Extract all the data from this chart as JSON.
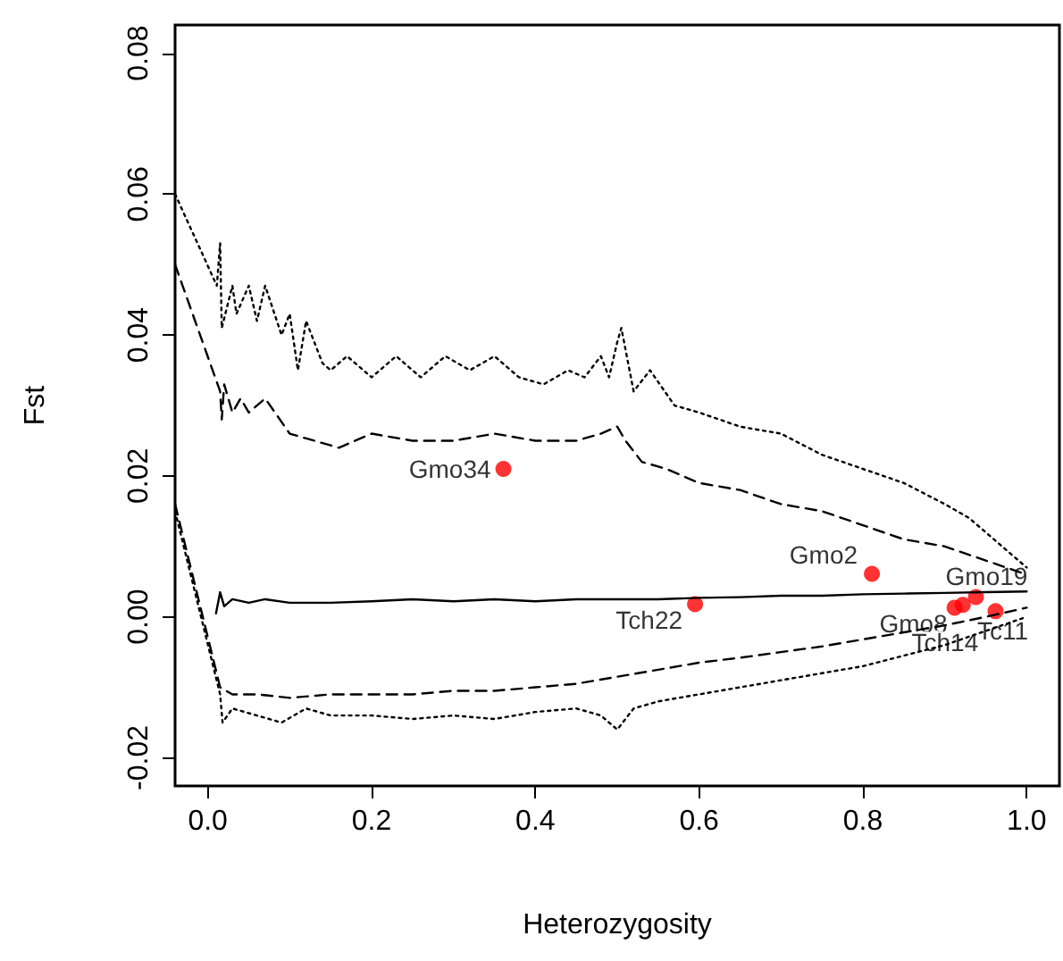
{
  "chart_data": {
    "type": "line",
    "xlabel": "Heterozygosity",
    "ylabel": "Fst",
    "xlim": [
      -0.04,
      1.04
    ],
    "ylim": [
      -0.024,
      0.084
    ],
    "xticks": [
      {
        "value": 0,
        "label": "0.0"
      },
      {
        "value": 0.2,
        "label": "0.2"
      },
      {
        "value": 0.4,
        "label": "0.4"
      },
      {
        "value": 0.6,
        "label": "0.6"
      },
      {
        "value": 0.8,
        "label": "0.8"
      },
      {
        "value": 1,
        "label": "1.0"
      }
    ],
    "yticks": [
      {
        "value": -0.02,
        "label": "-0.02"
      },
      {
        "value": 0,
        "label": "0.00"
      },
      {
        "value": 0.02,
        "label": "0.02"
      },
      {
        "value": 0.04,
        "label": "0.04"
      },
      {
        "value": 0.06,
        "label": "0.06"
      },
      {
        "value": 0.08,
        "label": "0.08"
      }
    ],
    "series": [
      {
        "color": "#000000",
        "line_style": "dotted",
        "marker": "none",
        "x": [
          -0.04,
          0.011,
          0.015,
          0.017,
          0.03,
          0.035,
          0.05,
          0.06,
          0.07,
          0.09,
          0.1,
          0.11,
          0.12,
          0.14,
          0.15,
          0.17,
          0.2,
          0.23,
          0.26,
          0.29,
          0.32,
          0.35,
          0.38,
          0.41,
          0.44,
          0.46,
          0.48,
          0.49,
          0.5,
          0.505,
          0.52,
          0.54,
          0.57,
          0.6,
          0.65,
          0.7,
          0.75,
          0.8,
          0.85,
          0.9,
          0.93,
          0.97,
          1.0
        ],
        "values": [
          0.06,
          0.047,
          0.053,
          0.041,
          0.047,
          0.043,
          0.047,
          0.042,
          0.047,
          0.04,
          0.043,
          0.035,
          0.042,
          0.036,
          0.035,
          0.037,
          0.034,
          0.037,
          0.034,
          0.037,
          0.035,
          0.037,
          0.034,
          0.033,
          0.035,
          0.034,
          0.037,
          0.034,
          0.039,
          0.041,
          0.032,
          0.035,
          0.03,
          0.029,
          0.027,
          0.026,
          0.023,
          0.021,
          0.019,
          0.016,
          0.014,
          0.01,
          0.007
        ]
      },
      {
        "color": "#000000",
        "line_style": "dashed",
        "marker": "none",
        "x": [
          -0.04,
          0.015,
          0.017,
          0.02,
          0.03,
          0.04,
          0.05,
          0.07,
          0.1,
          0.13,
          0.16,
          0.2,
          0.25,
          0.3,
          0.35,
          0.4,
          0.45,
          0.48,
          0.5,
          0.51,
          0.53,
          0.56,
          0.6,
          0.65,
          0.7,
          0.75,
          0.8,
          0.85,
          0.9,
          0.95,
          1.0
        ],
        "values": [
          0.05,
          0.032,
          0.028,
          0.033,
          0.029,
          0.031,
          0.029,
          0.031,
          0.026,
          0.025,
          0.024,
          0.026,
          0.025,
          0.025,
          0.026,
          0.025,
          0.025,
          0.026,
          0.027,
          0.025,
          0.022,
          0.021,
          0.019,
          0.018,
          0.016,
          0.015,
          0.013,
          0.011,
          0.01,
          0.008,
          0.006
        ]
      },
      {
        "color": "#000000",
        "line_style": "solid",
        "marker": "none",
        "x": [
          0.01,
          0.015,
          0.02,
          0.03,
          0.05,
          0.07,
          0.1,
          0.15,
          0.2,
          0.25,
          0.3,
          0.35,
          0.4,
          0.45,
          0.5,
          0.55,
          0.6,
          0.65,
          0.7,
          0.75,
          0.8,
          0.85,
          0.9,
          0.95,
          1.0
        ],
        "values": [
          0.0005,
          0.0035,
          0.0015,
          0.0025,
          0.002,
          0.0025,
          0.002,
          0.002,
          0.0022,
          0.0025,
          0.0022,
          0.0025,
          0.0022,
          0.0025,
          0.0025,
          0.0025,
          0.0027,
          0.0028,
          0.003,
          0.003,
          0.0032,
          0.0033,
          0.0034,
          0.0035,
          0.0036
        ]
      },
      {
        "color": "#000000",
        "line_style": "dashed",
        "marker": "none",
        "x": [
          -0.04,
          0.015,
          0.03,
          0.06,
          0.1,
          0.15,
          0.2,
          0.25,
          0.3,
          0.35,
          0.4,
          0.45,
          0.5,
          0.55,
          0.6,
          0.65,
          0.7,
          0.75,
          0.8,
          0.85,
          0.9,
          0.95,
          1.0
        ],
        "values": [
          0.016,
          -0.01,
          -0.011,
          -0.011,
          -0.0115,
          -0.011,
          -0.011,
          -0.011,
          -0.0105,
          -0.0105,
          -0.01,
          -0.0095,
          -0.0085,
          -0.0075,
          -0.0065,
          -0.0058,
          -0.005,
          -0.0042,
          -0.0032,
          -0.0022,
          -0.0012,
          0.0,
          0.0013
        ]
      },
      {
        "color": "#000000",
        "line_style": "dotted",
        "marker": "none",
        "x": [
          -0.04,
          0.015,
          0.018,
          0.03,
          0.06,
          0.09,
          0.12,
          0.15,
          0.2,
          0.25,
          0.3,
          0.35,
          0.4,
          0.45,
          0.48,
          0.5,
          0.52,
          0.55,
          0.6,
          0.65,
          0.7,
          0.75,
          0.8,
          0.85,
          0.9,
          0.95,
          1.0
        ],
        "values": [
          0.015,
          -0.011,
          -0.015,
          -0.013,
          -0.014,
          -0.015,
          -0.013,
          -0.014,
          -0.014,
          -0.0145,
          -0.014,
          -0.0145,
          -0.0135,
          -0.013,
          -0.014,
          -0.016,
          -0.013,
          -0.012,
          -0.011,
          -0.01,
          -0.009,
          -0.008,
          -0.007,
          -0.0055,
          -0.004,
          -0.002,
          0.0
        ]
      },
      {
        "type": "scatter",
        "color": "#ff0000",
        "marker": "circle",
        "x": [
          0.361,
          0.595,
          0.811,
          0.912,
          0.922,
          0.938,
          0.962
        ],
        "values": [
          0.021,
          0.0018,
          0.0061,
          0.0013,
          0.0017,
          0.0028,
          0.0008
        ],
        "value_labels": [
          "Gmo34",
          "Tch22",
          "Gmo2",
          "Gmo8",
          "Tch14",
          "Gmo19",
          "Tc11"
        ]
      }
    ]
  }
}
